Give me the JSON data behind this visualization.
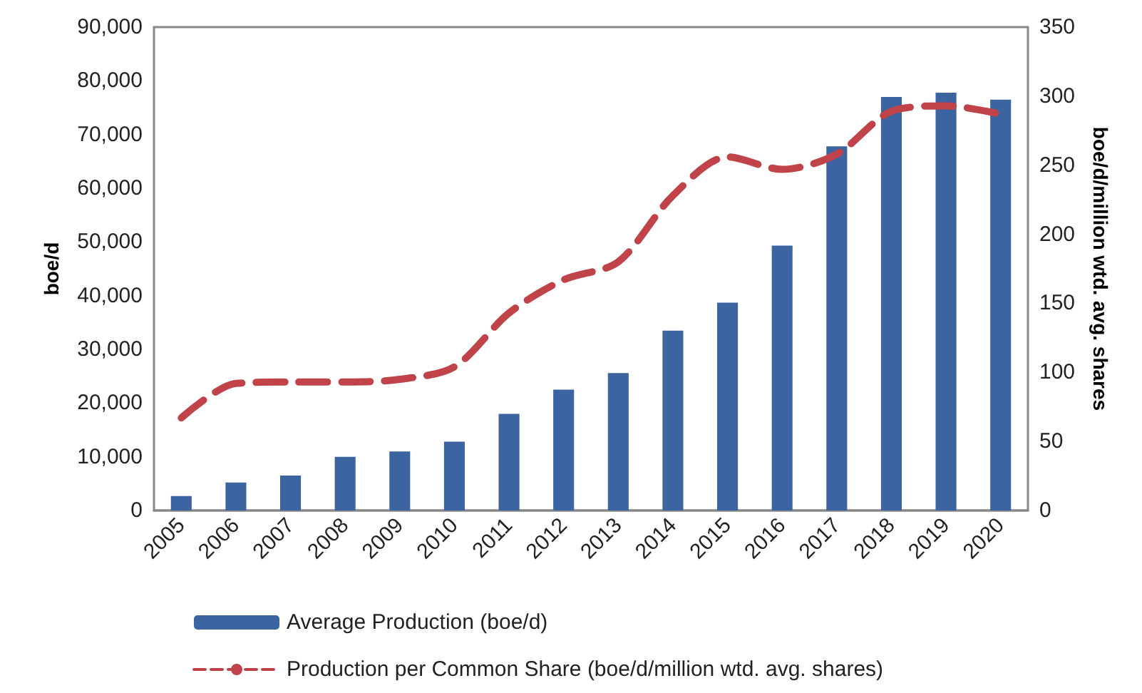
{
  "chart_data": {
    "type": "bar",
    "categories": [
      "2005",
      "2006",
      "2007",
      "2008",
      "2009",
      "2010",
      "2011",
      "2012",
      "2013",
      "2014",
      "2015",
      "2016",
      "2017",
      "2018",
      "2019",
      "2020"
    ],
    "ylabel": "boe/d",
    "y2label": "boe/d/million wtd. avg. shares",
    "ylim": [
      0,
      90000
    ],
    "yticks": [
      0,
      {
        "value": 10000,
        "label": "10,000"
      },
      {
        "value": 20000,
        "label": "20,000"
      },
      {
        "value": 30000,
        "label": "30,000"
      },
      {
        "value": 40000,
        "label": "40,000"
      },
      {
        "value": 50000,
        "label": "50,000"
      },
      {
        "value": 60000,
        "label": "60,000"
      },
      {
        "value": 70000,
        "label": "70,000"
      },
      {
        "value": 80000,
        "label": "80,000"
      },
      {
        "value": 90000,
        "label": "90,000"
      }
    ],
    "y2lim": [
      0,
      350
    ],
    "y2ticks": [
      0,
      50,
      100,
      150,
      200,
      250,
      300,
      350
    ],
    "series": [
      {
        "name": "Average Production (boe/d)",
        "color": "#3b64a0",
        "values": [
          2700,
          5200,
          6500,
          10000,
          11000,
          12800,
          18000,
          22500,
          25600,
          33500,
          38700,
          49300,
          67800,
          77000,
          77800,
          76500
        ]
      },
      {
        "name": "Production per Common Share (boe/d/million wtd. avg. shares)",
        "type": "line",
        "axis": "y2",
        "color": "#c0434a",
        "line_style": "dashed",
        "marker": "none",
        "values": [
          67,
          92,
          93,
          93,
          95,
          104,
          143,
          167,
          180,
          228,
          256,
          247,
          258,
          289,
          293,
          287
        ]
      }
    ],
    "grid": false,
    "legend": "bottom"
  }
}
